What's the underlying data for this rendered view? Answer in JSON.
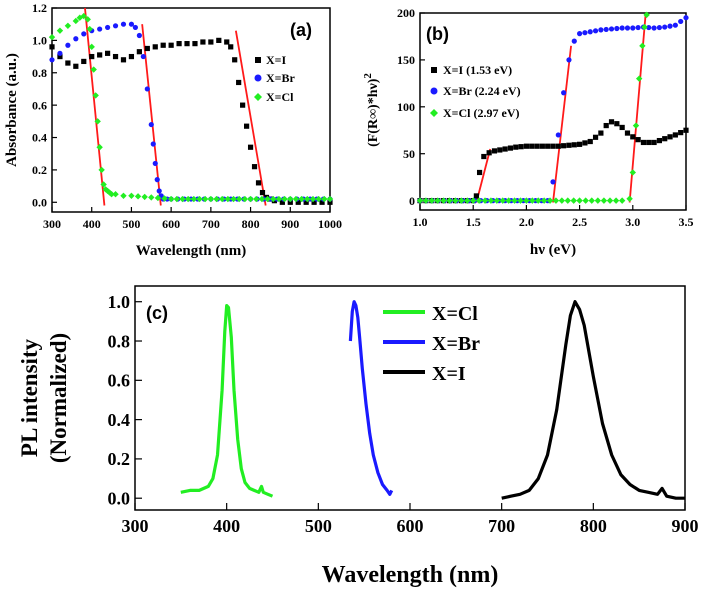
{
  "chart_data": [
    {
      "panel_label": "(a)",
      "type": "scatter",
      "xlabel": "Wavelength (nm)",
      "ylabel": "Absorbance (a.u.)",
      "xlim": [
        300,
        1000
      ],
      "ylim": [
        -0.06,
        1.2
      ],
      "xticks": [
        300,
        400,
        500,
        600,
        700,
        800,
        900,
        1000
      ],
      "yticks": [
        0.0,
        0.2,
        0.4,
        0.6,
        0.8,
        1.0,
        1.2
      ],
      "ytick_labels": [
        "0.0",
        "0.2",
        "0.4",
        "0.6",
        "0.8",
        "1.0",
        "1.2"
      ],
      "legend_position": "right",
      "series": [
        {
          "name": "X=I",
          "color": "#000000",
          "marker": "square",
          "x": [
            300,
            320,
            340,
            360,
            380,
            400,
            420,
            440,
            460,
            480,
            500,
            520,
            540,
            560,
            580,
            600,
            620,
            640,
            660,
            680,
            700,
            720,
            740,
            750,
            760,
            770,
            780,
            790,
            800,
            810,
            820,
            830,
            840,
            850,
            860,
            880,
            900,
            920,
            940,
            960,
            980,
            1000
          ],
          "y": [
            0.96,
            0.9,
            0.86,
            0.84,
            0.87,
            0.9,
            0.91,
            0.92,
            0.9,
            0.88,
            0.9,
            0.93,
            0.95,
            0.96,
            0.97,
            0.97,
            0.98,
            0.98,
            0.98,
            0.99,
            0.99,
            1.0,
            0.99,
            0.96,
            0.88,
            0.74,
            0.6,
            0.47,
            0.34,
            0.22,
            0.12,
            0.06,
            0.03,
            0.02,
            0.01,
            0.0,
            0.0,
            0.0,
            0.0,
            0.0,
            0.0,
            0.0
          ]
        },
        {
          "name": "X=Br",
          "color": "#1a1aff",
          "marker": "circle",
          "x": [
            300,
            320,
            340,
            360,
            380,
            400,
            420,
            440,
            460,
            480,
            500,
            510,
            520,
            530,
            540,
            550,
            555,
            560,
            565,
            570,
            575,
            580,
            590,
            600,
            650,
            700,
            750,
            800,
            850,
            900,
            950,
            1000
          ],
          "y": [
            0.88,
            0.92,
            0.97,
            1.01,
            1.04,
            1.06,
            1.07,
            1.08,
            1.09,
            1.1,
            1.1,
            1.08,
            1.03,
            0.9,
            0.7,
            0.48,
            0.36,
            0.24,
            0.14,
            0.07,
            0.04,
            0.02,
            0.02,
            0.02,
            0.02,
            0.02,
            0.02,
            0.02,
            0.02,
            0.02,
            0.02,
            0.02
          ]
        },
        {
          "name": "X=Cl",
          "color": "#22ee22",
          "marker": "diamond",
          "x": [
            300,
            320,
            340,
            360,
            370,
            380,
            390,
            395,
            400,
            405,
            410,
            415,
            420,
            425,
            430,
            435,
            440,
            445,
            450,
            460,
            480,
            500,
            550,
            600,
            700,
            800,
            900,
            1000
          ],
          "y": [
            1.02,
            1.06,
            1.09,
            1.12,
            1.14,
            1.15,
            1.13,
            1.07,
            0.96,
            0.82,
            0.66,
            0.5,
            0.34,
            0.2,
            0.11,
            0.08,
            0.07,
            0.06,
            0.05,
            0.05,
            0.04,
            0.04,
            0.03,
            0.02,
            0.02,
            0.02,
            0.02,
            0.02
          ]
        }
      ],
      "fit_lines": [
        {
          "x": [
            383,
            432
          ],
          "y": [
            1.2,
            -0.02
          ]
        },
        {
          "x": [
            527,
            574
          ],
          "y": [
            1.1,
            -0.02
          ]
        },
        {
          "x": [
            763,
            838
          ],
          "y": [
            1.06,
            -0.02
          ]
        }
      ]
    },
    {
      "panel_label": "(b)",
      "type": "scatter",
      "xlabel": "hν (eV)",
      "ylabel": "(F(R∞)*hν)2",
      "xlim": [
        1.0,
        3.5
      ],
      "ylim": [
        -10,
        200
      ],
      "xticks": [
        1.0,
        1.5,
        2.0,
        2.5,
        3.0,
        3.5
      ],
      "xtick_labels": [
        "1.0",
        "1.5",
        "2.0",
        "2.5",
        "3.0",
        "3.5"
      ],
      "yticks": [
        0,
        50,
        100,
        150,
        200
      ],
      "legend_position": "left",
      "series": [
        {
          "name": "X=I (1.53 eV)",
          "color": "#000000",
          "marker": "square",
          "x": [
            1.0,
            1.5,
            1.53,
            1.56,
            1.6,
            1.65,
            1.7,
            1.8,
            1.9,
            2.0,
            2.1,
            2.2,
            2.3,
            2.4,
            2.5,
            2.6,
            2.7,
            2.75,
            2.8,
            2.85,
            2.9,
            2.95,
            3.0,
            3.1,
            3.2,
            3.3,
            3.4,
            3.5
          ],
          "y": [
            0,
            0,
            5,
            30,
            47,
            51,
            53,
            55,
            57,
            58,
            58,
            58,
            58,
            59,
            60,
            63,
            72,
            80,
            84,
            82,
            78,
            72,
            68,
            62,
            62,
            66,
            70,
            75
          ]
        },
        {
          "name": "X=Br (2.24 eV)",
          "color": "#1a1aff",
          "marker": "circle",
          "x": [
            1.0,
            2.2,
            2.25,
            2.3,
            2.35,
            2.4,
            2.45,
            2.5,
            2.6,
            2.7,
            2.8,
            2.9,
            3.0,
            3.1,
            3.2,
            3.3,
            3.4,
            3.5
          ],
          "y": [
            0,
            0,
            20,
            70,
            115,
            150,
            170,
            178,
            180,
            182,
            183,
            184,
            184,
            185,
            184,
            185,
            187,
            195
          ]
        },
        {
          "name": "X=Cl (2.97 eV)",
          "color": "#22ee22",
          "marker": "diamond",
          "x": [
            1.0,
            1.5,
            2.0,
            2.5,
            2.9,
            2.97,
            3.0,
            3.03,
            3.06,
            3.09,
            3.11,
            3.13
          ],
          "y": [
            0,
            0,
            0,
            0,
            0,
            2,
            30,
            80,
            130,
            165,
            185,
            198
          ]
        }
      ],
      "fit_lines": [
        {
          "x": [
            1.53,
            1.66
          ],
          "y": [
            -2,
            55
          ]
        },
        {
          "x": [
            2.25,
            2.42
          ],
          "y": [
            -2,
            165
          ]
        },
        {
          "x": [
            2.97,
            3.12
          ],
          "y": [
            -2,
            198
          ]
        }
      ]
    },
    {
      "panel_label": "(c)",
      "type": "line",
      "xlabel": "Wavelength (nm)",
      "ylabel_line1": "PL intensity",
      "ylabel_line2": "(Normalized)",
      "xlim": [
        300,
        900
      ],
      "ylim": [
        -0.06,
        1.08
      ],
      "xticks": [
        300,
        400,
        500,
        600,
        700,
        800,
        900
      ],
      "yticks": [
        0.0,
        0.2,
        0.4,
        0.6,
        0.8,
        1.0
      ],
      "ytick_labels": [
        "0.0",
        "0.2",
        "0.4",
        "0.6",
        "0.8",
        "1.0"
      ],
      "legend_position": "top-center",
      "series": [
        {
          "name": "X=Cl",
          "color": "#22ee22",
          "x": [
            350,
            360,
            370,
            380,
            385,
            390,
            395,
            398,
            400,
            402,
            405,
            408,
            412,
            416,
            420,
            425,
            430,
            435,
            438,
            440,
            445,
            450
          ],
          "y": [
            0.03,
            0.04,
            0.04,
            0.06,
            0.1,
            0.22,
            0.55,
            0.85,
            0.98,
            0.97,
            0.82,
            0.55,
            0.3,
            0.15,
            0.08,
            0.05,
            0.04,
            0.03,
            0.06,
            0.03,
            0.02,
            0.01
          ]
        },
        {
          "name": "X=Br",
          "color": "#1a1aff",
          "x": [
            535,
            537,
            539,
            541,
            543,
            545,
            548,
            552,
            556,
            560,
            565,
            570,
            575,
            578,
            580
          ],
          "y": [
            0.8,
            0.95,
            1.0,
            0.98,
            0.92,
            0.82,
            0.66,
            0.48,
            0.33,
            0.22,
            0.13,
            0.07,
            0.04,
            0.02,
            0.04
          ]
        },
        {
          "name": "X=I",
          "color": "#000000",
          "x": [
            700,
            710,
            720,
            730,
            740,
            750,
            760,
            770,
            775,
            780,
            785,
            790,
            800,
            810,
            820,
            830,
            840,
            850,
            860,
            870,
            875,
            880,
            890,
            900
          ],
          "y": [
            0.0,
            0.01,
            0.02,
            0.04,
            0.1,
            0.22,
            0.45,
            0.78,
            0.93,
            1.0,
            0.96,
            0.88,
            0.62,
            0.38,
            0.22,
            0.12,
            0.07,
            0.04,
            0.03,
            0.02,
            0.05,
            0.01,
            0.0,
            0.0
          ]
        }
      ]
    }
  ]
}
